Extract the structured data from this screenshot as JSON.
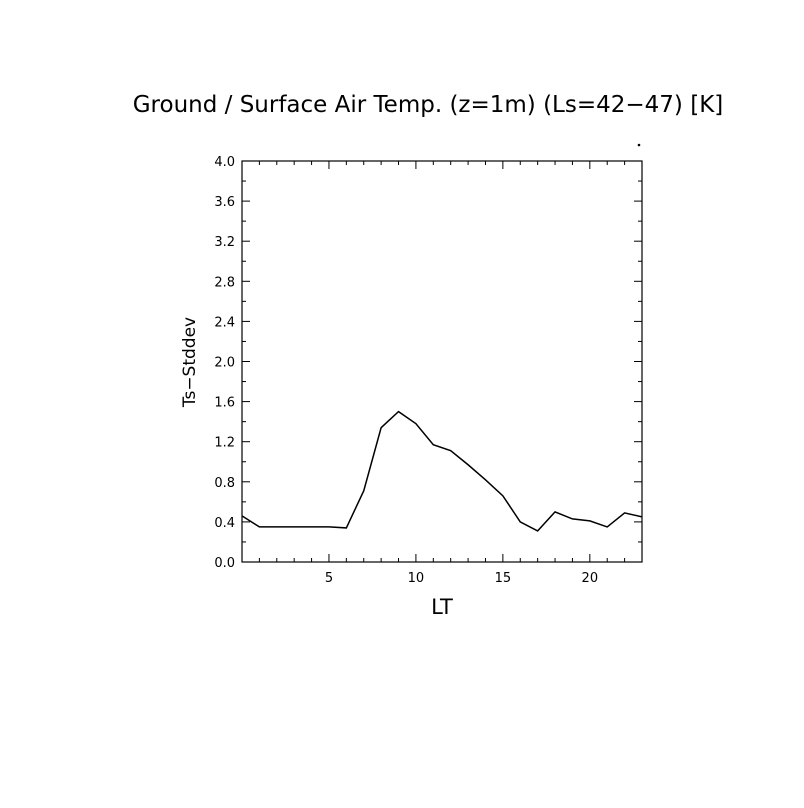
{
  "chart_data": {
    "type": "line",
    "title": "Ground / Surface Air Temp. (z=1m) (Ls=42−47) [K]",
    "xlabel": "LT",
    "ylabel": "Ts−Stddev",
    "xlim": [
      0.0,
      23.0
    ],
    "ylim": [
      0.0,
      4.0
    ],
    "xticks": [
      5,
      10,
      15,
      20
    ],
    "xtick_labels": [
      "5",
      "10",
      "15",
      "20"
    ],
    "yticks": [
      0.0,
      0.4,
      0.8,
      1.2,
      1.6,
      2.0,
      2.4,
      2.8,
      3.2,
      3.6,
      4.0
    ],
    "ytick_labels": [
      "0.0",
      "0.4",
      "0.8",
      "1.2",
      "1.6",
      "2.0",
      "2.4",
      "2.8",
      "3.2",
      "3.6",
      "4.0"
    ],
    "grid": false,
    "legend": "none",
    "line_color": "#000000",
    "series": [
      {
        "x": [
          0.0,
          1.0,
          2.0,
          3.0,
          4.0,
          5.0,
          6.0,
          7.0,
          8.0,
          9.0,
          10.0,
          11.0,
          12.0,
          13.0,
          14.0,
          15.0,
          16.0,
          17.0,
          18.0,
          19.0,
          20.0,
          21.0,
          22.0,
          23.0
        ],
        "values": [
          0.46,
          0.35,
          0.35,
          0.35,
          0.35,
          0.35,
          0.34,
          0.71,
          1.34,
          1.5,
          1.38,
          1.17,
          1.11,
          0.97,
          0.82,
          0.66,
          0.4,
          0.31,
          0.5,
          0.43,
          0.41,
          0.35,
          0.49,
          0.45
        ]
      }
    ]
  }
}
